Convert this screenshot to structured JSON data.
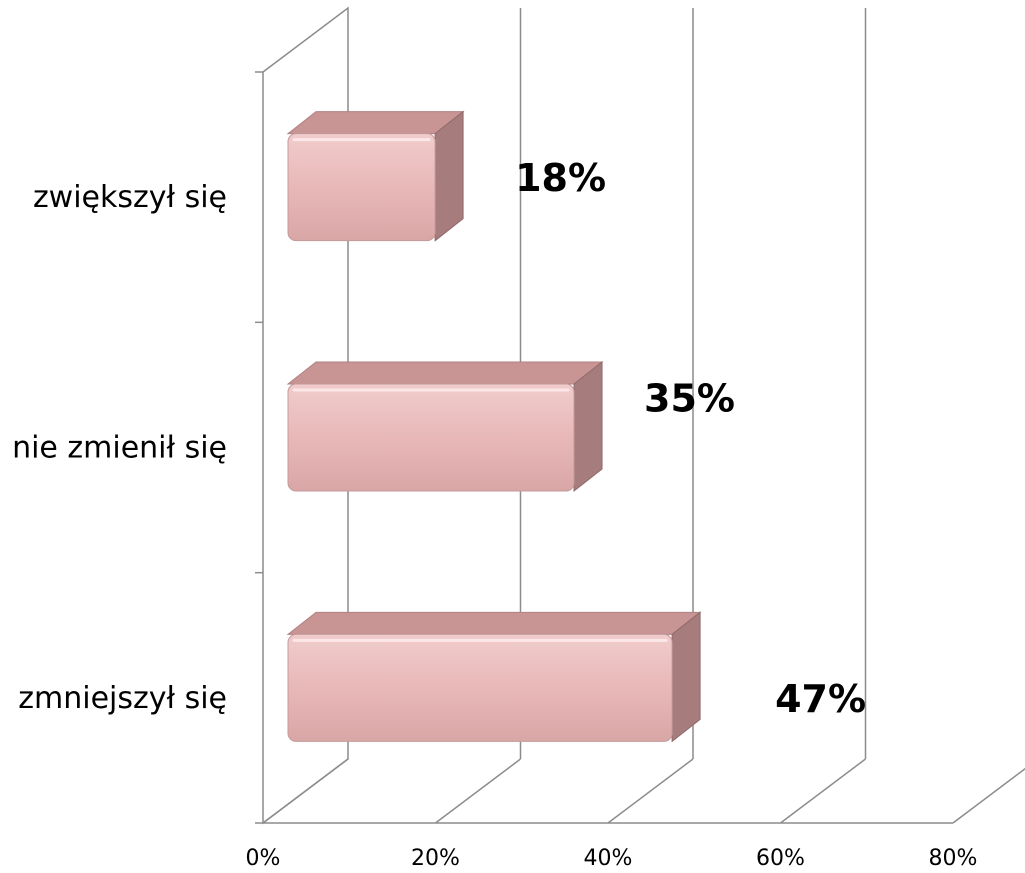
{
  "chart_data": {
    "type": "bar",
    "orientation": "horizontal",
    "three_d": true,
    "categories": [
      "zmniejszył się",
      "nie zmienił się",
      "zwiększył się"
    ],
    "values": [
      0.47,
      0.35,
      0.18
    ],
    "data_labels": [
      "47%",
      "35%",
      "18%"
    ],
    "x_ticks": [
      "0%",
      "20%",
      "40%",
      "60%",
      "80%"
    ],
    "xlim": [
      0,
      0.8
    ],
    "grid": true,
    "legend": "none",
    "colors": {
      "bar_front": "#e8b8b8",
      "bar_top": "#c89494",
      "bar_side": "#a67c7c"
    }
  }
}
